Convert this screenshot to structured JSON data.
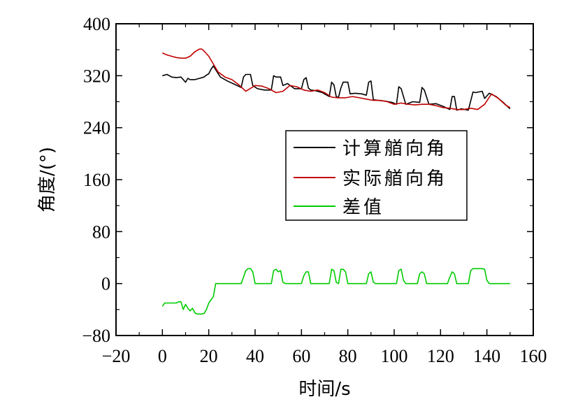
{
  "chart_data": {
    "type": "line",
    "xlabel": "时间/s",
    "ylabel": "角度/(°)",
    "xlim": [
      -20,
      160
    ],
    "ylim": [
      -80,
      400
    ],
    "xticks": [
      -20,
      0,
      20,
      40,
      60,
      80,
      100,
      120,
      140,
      160
    ],
    "yticks": [
      -80,
      0,
      80,
      160,
      240,
      320,
      400
    ],
    "xtick_labels": [
      "−20",
      "0",
      "20",
      "40",
      "60",
      "80",
      "100",
      "120",
      "140",
      "160"
    ],
    "ytick_labels": [
      "−80",
      "0",
      "80",
      "160",
      "240",
      "320",
      "400"
    ],
    "grid": false,
    "legend_position": "center-right",
    "series": [
      {
        "name": "计算艏向角",
        "color": "#000000",
        "x": [
          0,
          2,
          4,
          6,
          8,
          10,
          11,
          12,
          14,
          16,
          18,
          19,
          20,
          21,
          22,
          25,
          28,
          31,
          34,
          35,
          36,
          38,
          39,
          41,
          44,
          47,
          48,
          49,
          51,
          52,
          54,
          57,
          60,
          61,
          62,
          63,
          64,
          66,
          69,
          72,
          73,
          74,
          75,
          76,
          77,
          78,
          80,
          81,
          83,
          86,
          88,
          89,
          90,
          91,
          93,
          96,
          99,
          101,
          102,
          103,
          105,
          108,
          111,
          112,
          113,
          115,
          118,
          121,
          124,
          125,
          126,
          127,
          129,
          132,
          134,
          135,
          138,
          139,
          141,
          144,
          147,
          150
        ],
        "values": [
          320,
          322,
          318,
          317,
          318,
          310,
          316,
          314,
          314,
          316,
          318,
          321,
          323,
          330,
          335,
          318,
          312,
          307,
          302,
          318,
          322,
          322,
          305,
          300,
          298,
          298,
          320,
          318,
          318,
          305,
          308,
          300,
          300,
          314,
          317,
          301,
          298,
          297,
          294,
          288,
          310,
          306,
          288,
          287,
          301,
          310,
          310,
          292,
          293,
          292,
          290,
          310,
          312,
          283,
          282,
          281,
          279,
          276,
          303,
          300,
          276,
          280,
          279,
          302,
          298,
          276,
          277,
          273,
          268,
          288,
          288,
          267,
          269,
          267,
          295,
          294,
          296,
          285,
          293,
          288,
          279,
          269
        ]
      },
      {
        "name": "实际艏向角",
        "color": "#c00000",
        "x": [
          0,
          2,
          4,
          6,
          8,
          10,
          12,
          14,
          16,
          17,
          18,
          20,
          22,
          24,
          27,
          30,
          33,
          36,
          40,
          43,
          46,
          49,
          52,
          55,
          58,
          61,
          64,
          67,
          70,
          73,
          76,
          79,
          82,
          85,
          88,
          91,
          94,
          97,
          100,
          103,
          106,
          109,
          112,
          115,
          118,
          121,
          124,
          127,
          130,
          133,
          136,
          139,
          142,
          145,
          148,
          150
        ],
        "values": [
          355,
          352,
          350,
          348,
          347,
          347,
          350,
          357,
          361,
          361,
          358,
          350,
          338,
          326,
          318,
          314,
          306,
          296,
          305,
          304,
          300,
          294,
          296,
          305,
          303,
          298,
          296,
          298,
          294,
          287,
          286,
          286,
          288,
          286,
          284,
          282,
          282,
          280,
          276,
          278,
          276,
          275,
          276,
          276,
          274,
          271,
          270,
          268,
          268,
          270,
          268,
          276,
          292,
          285,
          275,
          271
        ]
      },
      {
        "name": "差值",
        "color": "#00cc00",
        "x": [
          0,
          1,
          2,
          4,
          6,
          7,
          8,
          9,
          10,
          11,
          12,
          13,
          14,
          15,
          16,
          17,
          18,
          19,
          20,
          21,
          22,
          23,
          24,
          26,
          30,
          34,
          35,
          36,
          37,
          38,
          39,
          40,
          45,
          47,
          48,
          49,
          50,
          51,
          52,
          53,
          58,
          60,
          61,
          62,
          63,
          64,
          70,
          72,
          73,
          74,
          75,
          76,
          77,
          78,
          79,
          80,
          81,
          82,
          87,
          88,
          89,
          90,
          91,
          92,
          99,
          101,
          102,
          103,
          104,
          105,
          109,
          110,
          111,
          112,
          113,
          114,
          122,
          123,
          124,
          125,
          126,
          127,
          131,
          132,
          133,
          134,
          138,
          139,
          140,
          141,
          145,
          150
        ],
        "values": [
          -35,
          -30,
          -30,
          -30,
          -30,
          -28,
          -28,
          -40,
          -32,
          -38,
          -42,
          -38,
          -45,
          -47,
          -47,
          -47,
          -46,
          -40,
          -30,
          -25,
          -20,
          0,
          0,
          0,
          0,
          0,
          10,
          20,
          23,
          23,
          18,
          0,
          0,
          0,
          20,
          22,
          18,
          20,
          2,
          0,
          0,
          0,
          12,
          18,
          18,
          0,
          0,
          0,
          22,
          20,
          2,
          0,
          22,
          22,
          18,
          0,
          0,
          0,
          0,
          0,
          15,
          18,
          2,
          0,
          0,
          0,
          20,
          22,
          5,
          0,
          0,
          0,
          15,
          18,
          15,
          0,
          0,
          0,
          10,
          18,
          15,
          0,
          0,
          0,
          20,
          23,
          23,
          22,
          5,
          0,
          0,
          0
        ]
      }
    ]
  }
}
